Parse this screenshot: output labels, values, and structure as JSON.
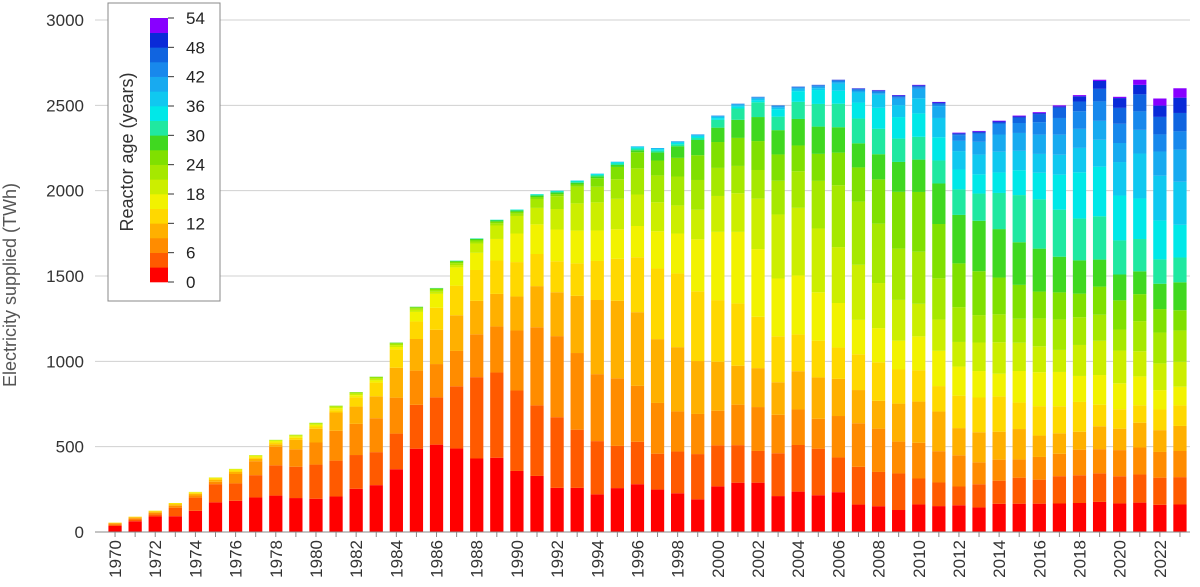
{
  "chart_data": {
    "type": "bar",
    "stacked": true,
    "ylabel": "Electricity supplied (TWh)",
    "ylim": [
      0,
      3000
    ],
    "yticks": [
      0,
      500,
      1000,
      1500,
      2000,
      2500,
      3000
    ],
    "x": [
      1970,
      1971,
      1972,
      1973,
      1974,
      1975,
      1976,
      1977,
      1978,
      1979,
      1980,
      1981,
      1982,
      1983,
      1984,
      1985,
      1986,
      1987,
      1988,
      1989,
      1990,
      1991,
      1992,
      1993,
      1994,
      1995,
      1996,
      1997,
      1998,
      1999,
      2000,
      2001,
      2002,
      2003,
      2004,
      2005,
      2006,
      2007,
      2008,
      2009,
      2010,
      2011,
      2012,
      2013,
      2014,
      2015,
      2016,
      2017,
      2018,
      2019,
      2020,
      2021,
      2022,
      2023
    ],
    "xtick_labels": [
      "1970",
      "1972",
      "1974",
      "1976",
      "1978",
      "1980",
      "1982",
      "1984",
      "1986",
      "1988",
      "1990",
      "1992",
      "1994",
      "1996",
      "1998",
      "2000",
      "2002",
      "2004",
      "2006",
      "2008",
      "2010",
      "2012",
      "2014",
      "2016",
      "2018",
      "2020",
      "2022"
    ],
    "totals": [
      55,
      90,
      125,
      170,
      235,
      320,
      370,
      450,
      540,
      570,
      640,
      740,
      820,
      910,
      1110,
      1320,
      1430,
      1590,
      1720,
      1830,
      1890,
      1980,
      2000,
      2060,
      2100,
      2170,
      2260,
      2250,
      2290,
      2330,
      2440,
      2510,
      2550,
      2500,
      2610,
      2620,
      2650,
      2600,
      2590,
      2560,
      2620,
      2520,
      2340,
      2350,
      2410,
      2440,
      2460,
      2500,
      2560,
      2650,
      2550,
      2650,
      2540,
      2600
    ],
    "age_bins": [
      "0-3",
      "3-6",
      "6-9",
      "9-12",
      "12-15",
      "15-18",
      "18-21",
      "21-24",
      "24-27",
      "27-30",
      "30-33",
      "33-36",
      "36-39",
      "39-42",
      "42-45",
      "45-48",
      "48-51",
      "51-54"
    ],
    "bin_colors": [
      "#ff0000",
      "#ff5a00",
      "#ff8c00",
      "#ffb000",
      "#ffd800",
      "#f2f200",
      "#ccee00",
      "#a6e800",
      "#80e000",
      "#40d820",
      "#20e8a0",
      "#00e8e8",
      "#10c8f0",
      "#18aaf0",
      "#1888ec",
      "#1064e0",
      "#0a2ad8",
      "#8800ff"
    ],
    "legend": {
      "title": "Reactor age (years)",
      "ticks": [
        "0",
        "6",
        "12",
        "18",
        "24",
        "30",
        "36",
        "42",
        "48",
        "54"
      ],
      "placement": "top-left"
    }
  }
}
